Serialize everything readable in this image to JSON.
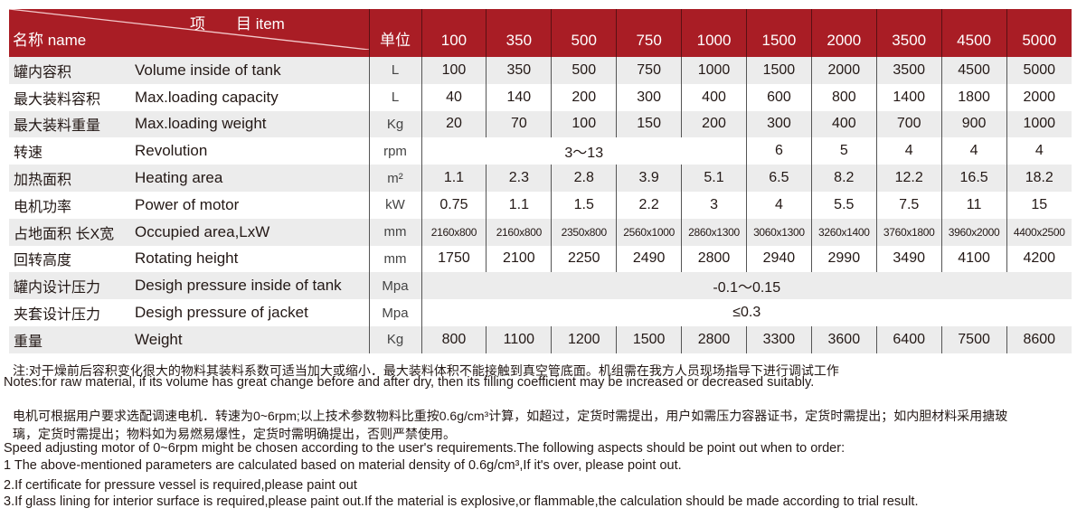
{
  "header": {
    "name": "名称 name",
    "item": "项　　目 item",
    "unit": "单位",
    "models": [
      "100",
      "350",
      "500",
      "750",
      "1000",
      "1500",
      "2000",
      "3500",
      "4500",
      "5000"
    ]
  },
  "rows": [
    {
      "cn": "罐内容积",
      "en": "Volume inside of tank",
      "unit": "L",
      "values": [
        "100",
        "350",
        "500",
        "750",
        "1000",
        "1500",
        "2000",
        "3500",
        "4500",
        "5000"
      ]
    },
    {
      "cn": "最大装料容积",
      "en": "Max.loading capacity",
      "unit": "L",
      "values": [
        "40",
        "140",
        "200",
        "300",
        "400",
        "600",
        "800",
        "1400",
        "1800",
        "2000"
      ]
    },
    {
      "cn": "最大装料重量",
      "en": "Max.loading weight",
      "unit": "Kg",
      "values": [
        "20",
        "70",
        "100",
        "150",
        "200",
        "300",
        "400",
        "700",
        "900",
        "1000"
      ]
    },
    {
      "cn": "转速",
      "en": "Revolution",
      "unit": "rpm",
      "merged": "3～13",
      "values": [
        "6",
        "5",
        "4",
        "4",
        "4"
      ]
    },
    {
      "cn": "加热面积",
      "en": "Heating area",
      "unit": "m²",
      "values": [
        "1.1",
        "2.3",
        "2.8",
        "3.9",
        "5.1",
        "6.5",
        "8.2",
        "12.2",
        "16.5",
        "18.2"
      ]
    },
    {
      "cn": "电机功率",
      "en": "Power of motor",
      "unit": "kW",
      "values": [
        "0.75",
        "1.1",
        "1.5",
        "2.2",
        "3",
        "4",
        "5.5",
        "7.5",
        "11",
        "15"
      ]
    },
    {
      "cn": "占地面积 长X宽",
      "en": "Occupied area,LxW",
      "unit": "mm",
      "values": [
        "2160x800",
        "2160x800",
        "2350x800",
        "2560x1000",
        "2860x1300",
        "3060x1300",
        "3260x1400",
        "3760x1800",
        "3960x2000",
        "4400x2500"
      ]
    },
    {
      "cn": "回转高度",
      "en": "Rotating height",
      "unit": "mm",
      "values": [
        "1750",
        "2100",
        "2250",
        "2490",
        "2800",
        "2940",
        "2990",
        "3490",
        "4100",
        "4200"
      ]
    },
    {
      "cn": "罐内设计压力",
      "en": "Desigh pressure inside of tank",
      "unit": "Mpa",
      "merged": "-0.1～0.15"
    },
    {
      "cn": "夹套设计压力",
      "en": "Desigh pressure of jacket",
      "unit": "Mpa",
      "merged": "≤0.3"
    },
    {
      "cn": "重量",
      "en": "Weight",
      "unit": "Kg",
      "values": [
        "800",
        "1100",
        "1200",
        "1500",
        "2800",
        "3300",
        "3600",
        "6400",
        "7500",
        "8600"
      ]
    }
  ],
  "notes": [
    "注:对干燥前后容积变化很大的物料其装料系数可适当加大或缩小．最大装料体积不能接触到真空管底面。机组需在我方人员现场指导下进行调试工作",
    "Notes:for raw material, if its volume has great change before and after dry, then its filling coefficient may be increased or decreased suitably.",
    "电机可根据用户要求选配调速电机．转速为0~6rpm;以上技术参数物料比重按0.6g/cm³计算，如超过，定货时需提出，用户如需压力容器证书，定货时需提出；如内胆材料采用搪玻",
    "璃，定货时需提出；物料如为易燃易爆性，定货时需明确提出，否则严禁使用。",
    "Speed adjusting motor of 0~6rpm might be chosen according to the user's requirements.The following aspects should be point out when to order:",
    "1 The above-mentioned parameters are calculated based on material density of 0.6g/cm³,If it's over, please point out.",
    "2.If certificate for pressure vessel is required,please paint out",
    "3.If glass lining for interior surface is required,please paint out.If the material is explosive,or flammable,the calculation should be made according to trial result."
  ],
  "colors": {
    "header_bg": "#a91d25",
    "row_alt": "#ececec"
  }
}
